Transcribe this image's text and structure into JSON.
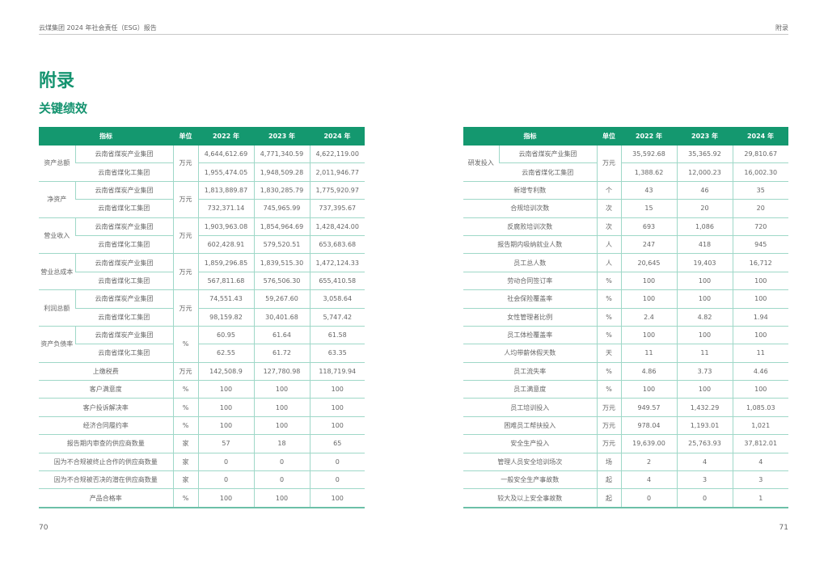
{
  "header": {
    "report_title": "云煤集团 2024 年社会责任（ESG）报告",
    "section": "附录"
  },
  "page": {
    "title": "附录",
    "subtitle": "关键绩效",
    "left_page_number": "70",
    "right_page_number": "71"
  },
  "colors": {
    "accent": "#14986f",
    "grid": "#9fd8c8"
  },
  "table_columns": {
    "indicator": "指标",
    "unit": "单位",
    "y2022": "2022 年",
    "y2023": "2023 年",
    "y2024": "2024 年"
  },
  "left_table": [
    {
      "label": "资产总额",
      "unit": "万元",
      "rows": [
        {
          "sub": "云南省煤炭产业集团",
          "values": [
            "4,644,612.69",
            "4,771,340.59",
            "4,622,119.00"
          ]
        },
        {
          "sub": "云南省煤化工集团",
          "values": [
            "1,955,474.05",
            "1,948,509.28",
            "2,011,946.77"
          ]
        }
      ]
    },
    {
      "label": "净资产",
      "unit": "万元",
      "rows": [
        {
          "sub": "云南省煤炭产业集团",
          "values": [
            "1,813,889.87",
            "1,830,285.79",
            "1,775,920.97"
          ]
        },
        {
          "sub": "云南省煤化工集团",
          "values": [
            "732,371.14",
            "745,965.99",
            "737,395.67"
          ]
        }
      ]
    },
    {
      "label": "营业收入",
      "unit": "万元",
      "rows": [
        {
          "sub": "云南省煤炭产业集团",
          "values": [
            "1,903,963.08",
            "1,854,964.69",
            "1,428,424.00"
          ]
        },
        {
          "sub": "云南省煤化工集团",
          "values": [
            "602,428.91",
            "579,520.51",
            "653,683.68"
          ]
        }
      ]
    },
    {
      "label": "营业总成本",
      "unit": "万元",
      "rows": [
        {
          "sub": "云南省煤炭产业集团",
          "values": [
            "1,859,296.85",
            "1,839,515.30",
            "1,472,124.33"
          ]
        },
        {
          "sub": "云南省煤化工集团",
          "values": [
            "567,811.68",
            "576,506.30",
            "655,410.58"
          ]
        }
      ]
    },
    {
      "label": "利润总额",
      "unit": "万元",
      "rows": [
        {
          "sub": "云南省煤炭产业集团",
          "values": [
            "74,551.43",
            "59,267.60",
            "3,058.64"
          ]
        },
        {
          "sub": "云南省煤化工集团",
          "values": [
            "98,159.82",
            "30,401.68",
            "5,747.42"
          ]
        }
      ]
    },
    {
      "label": "资产负债率",
      "unit": "%",
      "rows": [
        {
          "sub": "云南省煤炭产业集团",
          "values": [
            "60.95",
            "61.64",
            "61.58"
          ]
        },
        {
          "sub": "云南省煤化工集团",
          "values": [
            "62.55",
            "61.72",
            "63.35"
          ]
        }
      ]
    },
    {
      "label": "上缴税费",
      "unit": "万元",
      "values": [
        "142,508.9",
        "127,780.98",
        "118,719.94"
      ]
    },
    {
      "label": "客户满意度",
      "unit": "%",
      "values": [
        "100",
        "100",
        "100"
      ]
    },
    {
      "label": "客户投诉解决率",
      "unit": "%",
      "values": [
        "100",
        "100",
        "100"
      ]
    },
    {
      "label": "经济合同履约率",
      "unit": "%",
      "values": [
        "100",
        "100",
        "100"
      ]
    },
    {
      "label": "报告期内审查的供应商数量",
      "unit": "家",
      "values": [
        "57",
        "18",
        "65"
      ]
    },
    {
      "label": "因为不合规被终止合作的供应商数量",
      "unit": "家",
      "values": [
        "0",
        "0",
        "0"
      ]
    },
    {
      "label": "因为不合规被否决的潜在供应商数量",
      "unit": "家",
      "values": [
        "0",
        "0",
        "0"
      ]
    },
    {
      "label": "产品合格率",
      "unit": "%",
      "values": [
        "100",
        "100",
        "100"
      ]
    }
  ],
  "right_table": [
    {
      "label": "研发投入",
      "unit": "万元",
      "rows": [
        {
          "sub": "云南省煤炭产业集团",
          "values": [
            "35,592.68",
            "35,365.92",
            "29,810.67"
          ]
        },
        {
          "sub": "云南省煤化工集团",
          "values": [
            "1,388.62",
            "12,000.23",
            "16,002.30"
          ]
        }
      ]
    },
    {
      "label": "新增专利数",
      "unit": "个",
      "values": [
        "43",
        "46",
        "35"
      ]
    },
    {
      "label": "合规培训次数",
      "unit": "次",
      "values": [
        "15",
        "20",
        "20"
      ]
    },
    {
      "label": "反腐败培训次数",
      "unit": "次",
      "values": [
        "693",
        "1,086",
        "720"
      ]
    },
    {
      "label": "报告期内吸纳就业人数",
      "unit": "人",
      "values": [
        "247",
        "418",
        "945"
      ]
    },
    {
      "label": "员工总人数",
      "unit": "人",
      "values": [
        "20,645",
        "19,403",
        "16,712"
      ]
    },
    {
      "label": "劳动合同签订率",
      "unit": "%",
      "values": [
        "100",
        "100",
        "100"
      ]
    },
    {
      "label": "社会保险覆盖率",
      "unit": "%",
      "values": [
        "100",
        "100",
        "100"
      ]
    },
    {
      "label": "女性管理者比例",
      "unit": "%",
      "values": [
        "2.4",
        "4.82",
        "1.94"
      ]
    },
    {
      "label": "员工体检覆盖率",
      "unit": "%",
      "values": [
        "100",
        "100",
        "100"
      ]
    },
    {
      "label": "人均带薪休假天数",
      "unit": "天",
      "values": [
        "11",
        "11",
        "11"
      ]
    },
    {
      "label": "员工流失率",
      "unit": "%",
      "values": [
        "4.86",
        "3.73",
        "4.46"
      ]
    },
    {
      "label": "员工满意度",
      "unit": "%",
      "values": [
        "100",
        "100",
        "100"
      ]
    },
    {
      "label": "员工培训投入",
      "unit": "万元",
      "values": [
        "949.57",
        "1,432.29",
        "1,085.03"
      ]
    },
    {
      "label": "困难员工帮扶投入",
      "unit": "万元",
      "values": [
        "978.04",
        "1,193.01",
        "1,021"
      ]
    },
    {
      "label": "安全生产投入",
      "unit": "万元",
      "values": [
        "19,639.00",
        "25,763.93",
        "37,812.01"
      ]
    },
    {
      "label": "管理人员安全培训场次",
      "unit": "场",
      "values": [
        "2",
        "4",
        "4"
      ]
    },
    {
      "label": "一般安全生产事故数",
      "unit": "起",
      "values": [
        "4",
        "3",
        "3"
      ]
    },
    {
      "label": "较大及以上安全事故数",
      "unit": "起",
      "values": [
        "0",
        "0",
        "1"
      ]
    }
  ]
}
